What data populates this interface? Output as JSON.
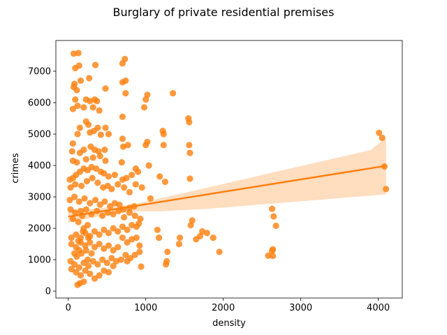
{
  "chart_data": {
    "type": "scatter",
    "title": "Burglary of private residential premises",
    "xlabel": "density",
    "ylabel": "crimes",
    "xlim": [
      -160,
      4310
    ],
    "ylim": [
      -220,
      7980
    ],
    "xticks": [
      0,
      1000,
      2000,
      3000,
      4000
    ],
    "yticks": [
      0,
      1000,
      2000,
      3000,
      4000,
      5000,
      6000,
      7000
    ],
    "grid": false,
    "legend": "none",
    "colors": {
      "points": "#ff7f0e",
      "line": "#ff7f0e",
      "band": "#ffd7b4"
    },
    "regression": {
      "x": [
        0,
        4100
      ],
      "y": [
        2370,
        3990
      ],
      "ci_x": [
        0,
        300,
        600,
        900,
        1200,
        1500,
        1800,
        2100,
        2400,
        2700,
        3000,
        3300,
        3600,
        3900,
        4100
      ],
      "ci_lower": [
        2180,
        2330,
        2480,
        2540,
        2540,
        2580,
        2620,
        2680,
        2740,
        2800,
        2860,
        2920,
        2980,
        3040,
        3080
      ],
      "ci_upper": [
        2560,
        2620,
        2680,
        2800,
        2960,
        3130,
        3300,
        3470,
        3640,
        3810,
        3980,
        4150,
        4320,
        4490,
        4880
      ]
    },
    "points": [
      [
        130,
        7580
      ],
      [
        70,
        7560
      ],
      [
        90,
        7100
      ],
      [
        140,
        7180
      ],
      [
        350,
        7200
      ],
      [
        730,
        7390
      ],
      [
        700,
        7250
      ],
      [
        80,
        6600
      ],
      [
        70,
        6500
      ],
      [
        160,
        6700
      ],
      [
        110,
        6400
      ],
      [
        270,
        6780
      ],
      [
        700,
        6650
      ],
      [
        740,
        6700
      ],
      [
        480,
        6450
      ],
      [
        740,
        6300
      ],
      [
        1020,
        6250
      ],
      [
        1350,
        6300
      ],
      [
        1000,
        6100
      ],
      [
        90,
        6100
      ],
      [
        230,
        6100
      ],
      [
        280,
        6050
      ],
      [
        340,
        6100
      ],
      [
        370,
        6050
      ],
      [
        120,
        5900
      ],
      [
        200,
        5850
      ],
      [
        320,
        5850
      ],
      [
        400,
        5750
      ],
      [
        980,
        5850
      ],
      [
        60,
        5800
      ],
      [
        700,
        5550
      ],
      [
        1550,
        5500
      ],
      [
        1560,
        5380
      ],
      [
        150,
        5200
      ],
      [
        230,
        5400
      ],
      [
        260,
        5300
      ],
      [
        330,
        5100
      ],
      [
        380,
        5200
      ],
      [
        120,
        5000
      ],
      [
        480,
        5200
      ],
      [
        1220,
        5100
      ],
      [
        1230,
        5000
      ],
      [
        280,
        5050
      ],
      [
        420,
        4980
      ],
      [
        520,
        5000
      ],
      [
        1020,
        4750
      ],
      [
        1000,
        4650
      ],
      [
        1230,
        4650
      ],
      [
        1560,
        4650
      ],
      [
        1570,
        4400
      ],
      [
        700,
        4850
      ],
      [
        710,
        4600
      ],
      [
        770,
        4650
      ],
      [
        60,
        4700
      ],
      [
        50,
        4450
      ],
      [
        150,
        4400
      ],
      [
        200,
        4500
      ],
      [
        290,
        4600
      ],
      [
        340,
        4500
      ],
      [
        390,
        4450
      ],
      [
        470,
        4500
      ],
      [
        60,
        4150
      ],
      [
        110,
        4100
      ],
      [
        230,
        4200
      ],
      [
        320,
        4250
      ],
      [
        410,
        4300
      ],
      [
        480,
        4150
      ],
      [
        690,
        4100
      ],
      [
        1040,
        4000
      ],
      [
        1180,
        3650
      ],
      [
        1250,
        3480
      ],
      [
        1570,
        3580
      ],
      [
        870,
        3900
      ],
      [
        900,
        3800
      ],
      [
        820,
        3700
      ],
      [
        750,
        3600
      ],
      [
        700,
        3550
      ],
      [
        600,
        3700
      ],
      [
        520,
        3650
      ],
      [
        460,
        3750
      ],
      [
        420,
        3800
      ],
      [
        360,
        3900
      ],
      [
        300,
        3950
      ],
      [
        250,
        3850
      ],
      [
        200,
        3900
      ],
      [
        150,
        3800
      ],
      [
        100,
        3700
      ],
      [
        60,
        3600
      ],
      [
        20,
        3550
      ],
      [
        30,
        3300
      ],
      [
        90,
        3400
      ],
      [
        170,
        3350
      ],
      [
        240,
        3500
      ],
      [
        310,
        3600
      ],
      [
        380,
        3450
      ],
      [
        450,
        3300
      ],
      [
        510,
        3350
      ],
      [
        560,
        3250
      ],
      [
        640,
        3400
      ],
      [
        720,
        3300
      ],
      [
        790,
        3150
      ],
      [
        870,
        3400
      ],
      [
        950,
        3300
      ],
      [
        1060,
        2950
      ],
      [
        850,
        2700
      ],
      [
        790,
        2650
      ],
      [
        710,
        2600
      ],
      [
        660,
        2750
      ],
      [
        600,
        2800
      ],
      [
        540,
        2700
      ],
      [
        470,
        2850
      ],
      [
        410,
        2750
      ],
      [
        350,
        2900
      ],
      [
        280,
        2800
      ],
      [
        210,
        2950
      ],
      [
        140,
        2850
      ],
      [
        80,
        3000
      ],
      [
        20,
        2900
      ],
      [
        30,
        2600
      ],
      [
        90,
        2500
      ],
      [
        160,
        2550
      ],
      [
        230,
        2600
      ],
      [
        300,
        2450
      ],
      [
        370,
        2550
      ],
      [
        440,
        2400
      ],
      [
        510,
        2500
      ],
      [
        580,
        2450
      ],
      [
        650,
        2550
      ],
      [
        720,
        2350
      ],
      [
        790,
        2500
      ],
      [
        860,
        2400
      ],
      [
        930,
        2300
      ],
      [
        910,
        2150
      ],
      [
        880,
        2050
      ],
      [
        820,
        2100
      ],
      [
        760,
        1950
      ],
      [
        700,
        2050
      ],
      [
        640,
        1900
      ],
      [
        580,
        2000
      ],
      [
        520,
        1850
      ],
      [
        460,
        1950
      ],
      [
        400,
        1800
      ],
      [
        340,
        1900
      ],
      [
        280,
        1750
      ],
      [
        220,
        1850
      ],
      [
        160,
        1700
      ],
      [
        100,
        1800
      ],
      [
        40,
        1700
      ],
      [
        40,
        1500
      ],
      [
        100,
        1400
      ],
      [
        160,
        1550
      ],
      [
        220,
        1450
      ],
      [
        280,
        1550
      ],
      [
        340,
        1400
      ],
      [
        400,
        1500
      ],
      [
        460,
        1350
      ],
      [
        520,
        1450
      ],
      [
        580,
        1300
      ],
      [
        640,
        1400
      ],
      [
        700,
        1700
      ],
      [
        760,
        1550
      ],
      [
        820,
        1650
      ],
      [
        880,
        1700
      ],
      [
        920,
        1450
      ],
      [
        920,
        1250
      ],
      [
        860,
        1150
      ],
      [
        800,
        1050
      ],
      [
        740,
        1150
      ],
      [
        680,
        1000
      ],
      [
        620,
        950
      ],
      [
        560,
        1050
      ],
      [
        500,
        900
      ],
      [
        440,
        1000
      ],
      [
        380,
        850
      ],
      [
        320,
        950
      ],
      [
        260,
        800
      ],
      [
        200,
        900
      ],
      [
        140,
        750
      ],
      [
        80,
        850
      ],
      [
        30,
        950
      ],
      [
        40,
        700
      ],
      [
        100,
        600
      ],
      [
        160,
        500
      ],
      [
        220,
        650
      ],
      [
        280,
        550
      ],
      [
        340,
        400
      ],
      [
        400,
        500
      ],
      [
        460,
        650
      ],
      [
        520,
        600
      ],
      [
        580,
        800
      ],
      [
        760,
        950
      ],
      [
        940,
        780
      ],
      [
        1150,
        1950
      ],
      [
        1170,
        1700
      ],
      [
        1280,
        1250
      ],
      [
        1270,
        950
      ],
      [
        1260,
        850
      ],
      [
        1430,
        1500
      ],
      [
        1440,
        1700
      ],
      [
        1580,
        2100
      ],
      [
        1600,
        2250
      ],
      [
        1650,
        1650
      ],
      [
        1700,
        1750
      ],
      [
        1730,
        1900
      ],
      [
        1790,
        1850
      ],
      [
        1870,
        1700
      ],
      [
        1950,
        1250
      ],
      [
        2630,
        2620
      ],
      [
        2650,
        2380
      ],
      [
        2680,
        2080
      ],
      [
        2640,
        1330
      ],
      [
        2630,
        1280
      ],
      [
        2580,
        1130
      ],
      [
        2640,
        1120
      ],
      [
        4010,
        5040
      ],
      [
        4050,
        4880
      ],
      [
        4080,
        3970
      ],
      [
        4100,
        3250
      ],
      [
        120,
        200
      ],
      [
        150,
        250
      ],
      [
        200,
        300
      ],
      [
        110,
        1100
      ],
      [
        170,
        1200
      ],
      [
        230,
        1300
      ],
      [
        250,
        1000
      ],
      [
        130,
        1600
      ],
      [
        190,
        1900
      ],
      [
        250,
        2100
      ],
      [
        130,
        2200
      ],
      [
        60,
        2300
      ],
      [
        180,
        2400
      ],
      [
        200,
        2000
      ],
      [
        260,
        1700
      ],
      [
        300,
        1200
      ],
      [
        140,
        1300
      ],
      [
        80,
        1200
      ]
    ]
  }
}
